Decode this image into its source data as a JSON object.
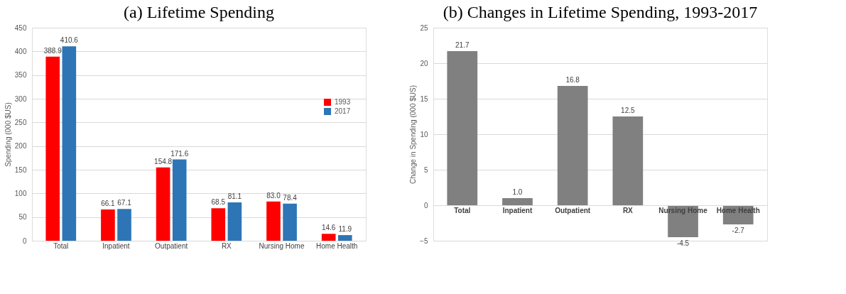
{
  "chart_data": [
    {
      "type": "bar",
      "title": "(a) Lifetime Spending",
      "ylabel": "Spending (000 $US)",
      "categories": [
        "Total",
        "Inpatient",
        "Outpatient",
        "RX",
        "Nursing Home",
        "Home Health"
      ],
      "series": [
        {
          "name": "1993",
          "color": "#ff0000",
          "values": [
            388.9,
            66.1,
            154.8,
            68.5,
            83.0,
            14.6
          ],
          "value_labels": [
            "388.9",
            "66.1",
            "154.8",
            "68.5",
            "83.0",
            "14.6"
          ]
        },
        {
          "name": "2017",
          "color": "#2e75b6",
          "values": [
            410.6,
            67.1,
            171.6,
            81.1,
            78.4,
            11.9
          ],
          "value_labels": [
            "410.6",
            "67.1",
            "171.6",
            "81.1",
            "78.4",
            "11.9"
          ]
        }
      ],
      "ylim": [
        0,
        450
      ],
      "yticks": [
        0,
        50,
        100,
        150,
        200,
        250,
        300,
        350,
        400,
        450
      ],
      "grid": "y",
      "legend": "right"
    },
    {
      "type": "bar",
      "title": "(b) Changes in Lifetime Spending, 1993-2017",
      "ylabel": "Change in Spending (000 $US)",
      "categories": [
        "Total",
        "Inpatient",
        "Outpatient",
        "RX",
        "Nursing Home",
        "Home Health"
      ],
      "series": [
        {
          "color": "#808080",
          "values": [
            21.7,
            1.0,
            16.8,
            12.5,
            -4.5,
            -2.7
          ],
          "value_labels": [
            "21.7",
            "1.0",
            "16.8",
            "12.5",
            "-4.5",
            "-2.7"
          ]
        }
      ],
      "ylim": [
        -5,
        25
      ],
      "yticks": [
        -5,
        0,
        5,
        10,
        15,
        20,
        25
      ],
      "grid": "y"
    }
  ]
}
